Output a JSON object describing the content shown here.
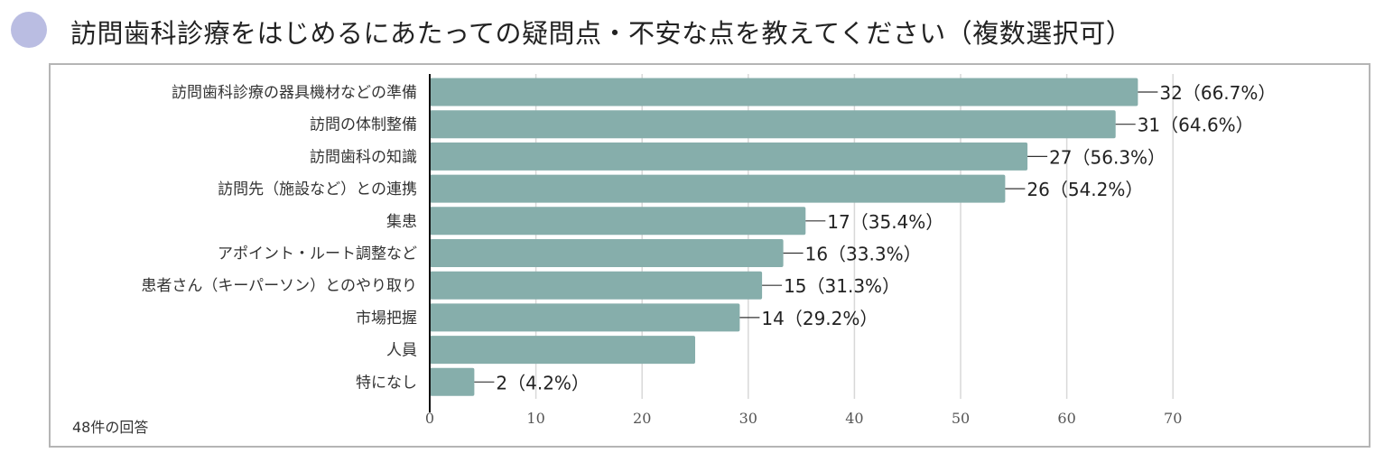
{
  "title": "訪問歯科診療をはじめるにあたっての疑問点・不安な点を教えてください（複数選択可）",
  "note": "48件の回答",
  "colors": {
    "bar": "#86aeab",
    "dot": "#babde2"
  },
  "chart_data": {
    "type": "bar",
    "orientation": "horizontal",
    "categories": [
      "訪問歯科診療の器具機材などの準備",
      "訪問の体制整備",
      "訪問歯科の知識",
      "訪問先（施設など）との連携",
      "集患",
      "アポイント・ルート調整など",
      "患者さん（キーパーソン）とのやり取り",
      "市場把握",
      "人員",
      "特になし"
    ],
    "values": [
      66.7,
      64.6,
      56.3,
      54.2,
      35.4,
      33.3,
      31.3,
      29.2,
      25.0,
      4.2
    ],
    "labels": [
      "32（66.7%）",
      "31（64.6%）",
      "27（56.3%）",
      "26（54.2%）",
      "17（35.4%）",
      "16（33.3%）",
      "15（31.3%）",
      "14（29.2%）",
      "",
      "2（4.2%）"
    ],
    "xlim": [
      0,
      70
    ],
    "xticks": [
      "0",
      "10",
      "20",
      "30",
      "40",
      "50",
      "60",
      "70"
    ],
    "grid": true
  }
}
